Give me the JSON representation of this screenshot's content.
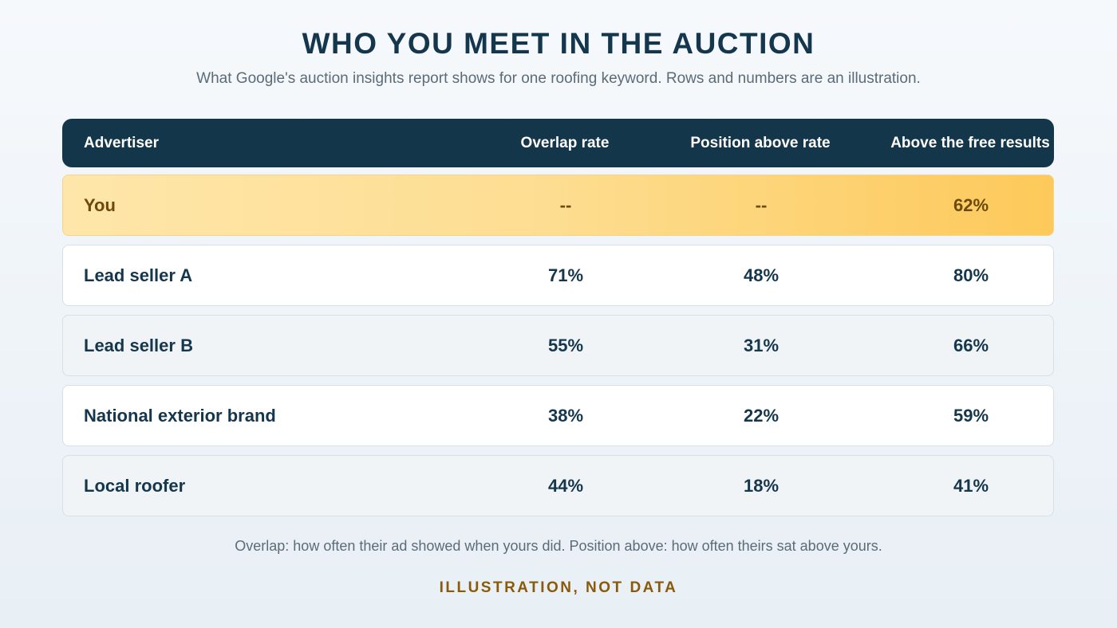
{
  "title": "WHO YOU MEET IN THE AUCTION",
  "subtitle": "What Google's auction insights report shows for one roofing keyword. Rows and numbers are an illustration.",
  "footnote": "Overlap: how often their ad showed when yours did. Position above: how often theirs sat above yours.",
  "disclaimer": "ILLUSTRATION, NOT DATA",
  "colors": {
    "header_bg": "#14364b",
    "highlight_row": "#fdd07a",
    "text_dark": "#15374d",
    "disclaimer": "#8a5a0a"
  },
  "chart_data": {
    "type": "table",
    "columns": [
      "Advertiser",
      "Overlap rate",
      "Position above rate",
      "Above the free results"
    ],
    "rows": [
      {
        "advertiser": "You",
        "overlap": "--",
        "position_above": "--",
        "above_free": "62%",
        "highlighted": true
      },
      {
        "advertiser": "Lead seller A",
        "overlap": "71%",
        "position_above": "48%",
        "above_free": "80%"
      },
      {
        "advertiser": "Lead seller B",
        "overlap": "55%",
        "position_above": "31%",
        "above_free": "66%"
      },
      {
        "advertiser": "National exterior brand",
        "overlap": "38%",
        "position_above": "22%",
        "above_free": "59%"
      },
      {
        "advertiser": "Local roofer",
        "overlap": "44%",
        "position_above": "18%",
        "above_free": "41%"
      }
    ]
  }
}
